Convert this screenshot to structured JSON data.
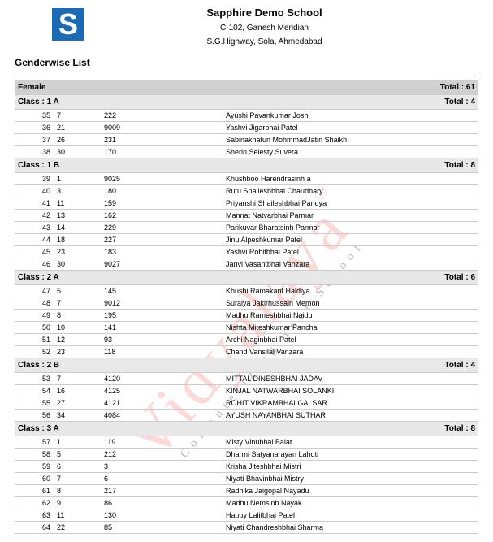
{
  "header": {
    "school_name": "Sapphire Demo School",
    "address1": "C-102, Ganesh Meridian",
    "address2": "S.G.Highway, Sola, Ahmedabad",
    "logo_letter": "S",
    "logo_color": "#1a6bb3"
  },
  "report": {
    "title": "Genderwise List"
  },
  "watermark": {
    "main": "Vidyalaya",
    "reg": "®",
    "sub": "Computerizing Your School"
  },
  "labels": {
    "total_prefix": "Total : ",
    "class_prefix": "Class : "
  },
  "gender": {
    "label": "Female",
    "total": "61"
  },
  "classes": [
    {
      "name": "1 A",
      "total": "4",
      "rows": [
        {
          "idx": "35",
          "roll": "7",
          "gr": "222",
          "name": "Ayushi Pavankumar Joshi"
        },
        {
          "idx": "36",
          "roll": "21",
          "gr": "9009",
          "name": "Yashvi Jigarbhai Patel"
        },
        {
          "idx": "37",
          "roll": "26",
          "gr": "231",
          "name": "Sabinakhatun MohmmadJatin Shaikh"
        },
        {
          "idx": "38",
          "roll": "30",
          "gr": "170",
          "name": "Sherin Selesty Suvera"
        }
      ]
    },
    {
      "name": "1 B",
      "total": "8",
      "rows": [
        {
          "idx": "39",
          "roll": "1",
          "gr": "9025",
          "name": "Khushboo Harendrasinh a"
        },
        {
          "idx": "40",
          "roll": "3",
          "gr": "180",
          "name": "Rutu Shaileshbhai Chaudhary"
        },
        {
          "idx": "41",
          "roll": "11",
          "gr": "159",
          "name": "Priyanshi Shaileshbhai Pandya"
        },
        {
          "idx": "42",
          "roll": "13",
          "gr": "162",
          "name": "Mannat Natvarbhai Parmar"
        },
        {
          "idx": "43",
          "roll": "14",
          "gr": "229",
          "name": "Parikuvar Bharatsinh Parmar"
        },
        {
          "idx": "44",
          "roll": "18",
          "gr": "227",
          "name": "Jinu Alpeshkumar Patel"
        },
        {
          "idx": "45",
          "roll": "23",
          "gr": "183",
          "name": "Yashvi Rohitbhai Patel"
        },
        {
          "idx": "46",
          "roll": "30",
          "gr": "9027",
          "name": "Janvi Vasantbhai Vanzara"
        }
      ]
    },
    {
      "name": "2 A",
      "total": "6",
      "rows": [
        {
          "idx": "47",
          "roll": "5",
          "gr": "145",
          "name": "Khushi Ramakant Haldiya"
        },
        {
          "idx": "48",
          "roll": "7",
          "gr": "9012",
          "name": "Suraiya Jakirhussain Memon"
        },
        {
          "idx": "49",
          "roll": "8",
          "gr": "195",
          "name": "Madhu Rameshbhai Naidu"
        },
        {
          "idx": "50",
          "roll": "10",
          "gr": "141",
          "name": "Nishta Miteshkumar Panchal"
        },
        {
          "idx": "51",
          "roll": "12",
          "gr": "93",
          "name": "Archi Naginbhai Patel"
        },
        {
          "idx": "52",
          "roll": "23",
          "gr": "118",
          "name": "Chand Vansilal Vanzara"
        }
      ]
    },
    {
      "name": "2 B",
      "total": "4",
      "rows": [
        {
          "idx": "53",
          "roll": "7",
          "gr": "4120",
          "name": "MITTAL DINESHBHAI JADAV"
        },
        {
          "idx": "54",
          "roll": "16",
          "gr": "4125",
          "name": "KINJAL NATWARBHAI SOLANKI"
        },
        {
          "idx": "55",
          "roll": "27",
          "gr": "4121",
          "name": "ROHIT VIKRAMBHAI GALSAR"
        },
        {
          "idx": "56",
          "roll": "34",
          "gr": "4084",
          "name": "AYUSH NAYANBHAI SUTHAR"
        }
      ]
    },
    {
      "name": "3 A",
      "total": "8",
      "rows": [
        {
          "idx": "57",
          "roll": "1",
          "gr": "119",
          "name": "Misty Vinubhai Balat"
        },
        {
          "idx": "58",
          "roll": "5",
          "gr": "212",
          "name": "Dharmi Satyanarayan Lahoti"
        },
        {
          "idx": "59",
          "roll": "6",
          "gr": "3",
          "name": "Krisha Jiteshbhai Mistri"
        },
        {
          "idx": "60",
          "roll": "7",
          "gr": "6",
          "name": "Niyati Bhavinbhai Mistry"
        },
        {
          "idx": "61",
          "roll": "8",
          "gr": "217",
          "name": "Radhika Jaigopal Nayadu"
        },
        {
          "idx": "62",
          "roll": "9",
          "gr": "86",
          "name": "Madhu Nemsinh Nayak"
        },
        {
          "idx": "63",
          "roll": "11",
          "gr": "130",
          "name": "Happy Lalitbhai Patel"
        },
        {
          "idx": "64",
          "roll": "22",
          "gr": "85",
          "name": "Niyati Chandreshbhai Sharma"
        }
      ]
    }
  ]
}
